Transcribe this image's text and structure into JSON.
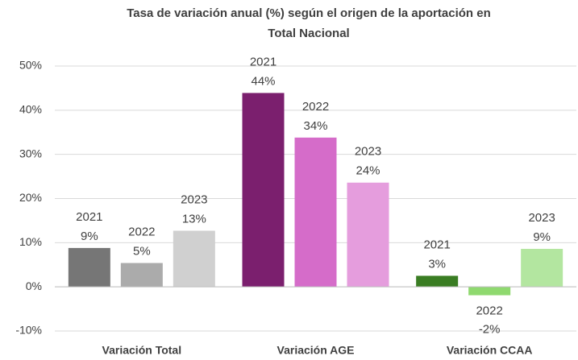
{
  "chart_data": {
    "type": "bar",
    "title": [
      "Tasa de variación anual (%) según el origen de la aportación en",
      "Total Nacional"
    ],
    "categories": [
      "Variación Total",
      "Variación AGE",
      "Variación CCAA"
    ],
    "series": [
      {
        "name": "2021",
        "colors": [
          "#767676",
          "#7b1f6e",
          "#3a7d23"
        ],
        "values": [
          8.8,
          43.9,
          2.5
        ],
        "value_labels": [
          "9%",
          "44%",
          "3%"
        ]
      },
      {
        "name": "2022",
        "colors": [
          "#ababab",
          "#d56cc9",
          "#8fd96f"
        ],
        "values": [
          5.4,
          33.8,
          -1.9
        ],
        "value_labels": [
          "5%",
          "34%",
          "-2%"
        ]
      },
      {
        "name": "2023",
        "colors": [
          "#d0d0d0",
          "#e59ddd",
          "#b3e6a0"
        ],
        "values": [
          12.7,
          23.6,
          8.6
        ],
        "value_labels": [
          "13%",
          "24%",
          "9%"
        ]
      }
    ],
    "ylim": [
      -10,
      50
    ],
    "yticks": [
      {
        "value": -10,
        "label": "-10%"
      },
      {
        "value": 0,
        "label": "0%"
      },
      {
        "value": 10,
        "label": "10%"
      },
      {
        "value": 20,
        "label": "20%"
      },
      {
        "value": 30,
        "label": "30%"
      },
      {
        "value": 40,
        "label": "40%"
      },
      {
        "value": 50,
        "label": "50%"
      }
    ],
    "grid": true
  }
}
